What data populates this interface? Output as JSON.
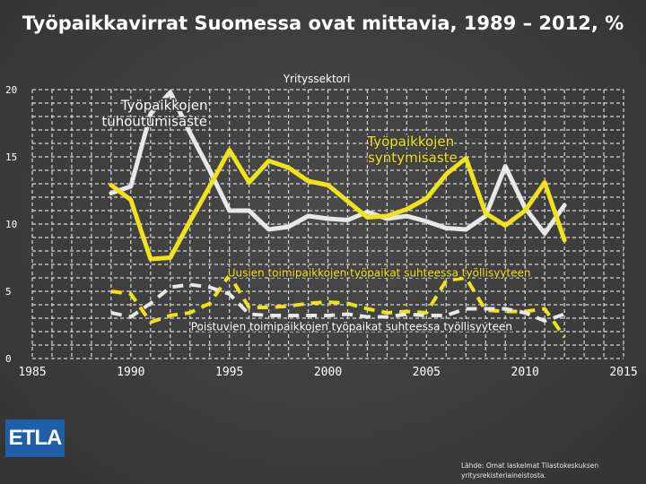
{
  "chart_data": {
    "type": "line",
    "title": "Työpaikkavirrat Suomessa ovat mittavia, 1989 – 2012, %",
    "subtitle": "Yrityssektori",
    "xlim": [
      1985,
      2015
    ],
    "ylim": [
      0,
      20
    ],
    "x_ticks": [
      1985,
      1990,
      1995,
      2000,
      2005,
      2010,
      2015
    ],
    "y_ticks": [
      0,
      5,
      10,
      15,
      20
    ],
    "grid": true,
    "x": [
      1989,
      1990,
      1991,
      1992,
      1993,
      1994,
      1995,
      1996,
      1997,
      1998,
      1999,
      2000,
      2001,
      2002,
      2003,
      2004,
      2005,
      2006,
      2007,
      2008,
      2009,
      2010,
      2011,
      2012
    ],
    "series": [
      {
        "name": "Työpaikkojen tuhoutumisaste",
        "style": "solid",
        "color": "#e8e8e8",
        "values": [
          12.3,
          12.8,
          18.2,
          19.8,
          16.8,
          14.0,
          11.0,
          11.0,
          9.6,
          9.8,
          10.6,
          10.4,
          10.3,
          10.9,
          10.4,
          10.6,
          10.2,
          9.7,
          9.6,
          10.6,
          14.3,
          11.2,
          9.3,
          11.4
        ]
      },
      {
        "name": "Työpaikkojen syntymisaste",
        "style": "solid",
        "color": "#f0e21b",
        "values": [
          12.9,
          11.8,
          7.4,
          7.5,
          10.2,
          12.8,
          15.5,
          13.1,
          14.7,
          14.2,
          13.2,
          12.9,
          11.7,
          10.5,
          10.6,
          11.1,
          11.9,
          13.7,
          14.9,
          10.8,
          9.9,
          11.0,
          13.1,
          8.8
        ]
      },
      {
        "name": "Uusien toimipaikkojen työpaikat suhteessa työllisyyteen",
        "style": "dashed",
        "color": "#f0e21b",
        "values": [
          5.0,
          4.8,
          2.7,
          3.2,
          3.4,
          4.1,
          6.2,
          3.8,
          3.8,
          3.9,
          4.1,
          4.2,
          4.1,
          3.7,
          3.4,
          3.5,
          3.4,
          5.8,
          6.0,
          3.6,
          3.5,
          3.5,
          3.7,
          1.6
        ]
      },
      {
        "name": "Poistuvien toimipaikkojen työpaikat suhteessa työllisyyteen",
        "style": "dashed",
        "color": "#e8e8e8",
        "values": [
          3.4,
          3.1,
          4.1,
          5.3,
          5.5,
          5.3,
          4.8,
          3.3,
          3.2,
          3.2,
          3.2,
          3.2,
          3.3,
          3.1,
          3.1,
          3.3,
          3.2,
          3.2,
          3.7,
          3.7,
          3.7,
          3.4,
          2.8,
          3.3
        ]
      }
    ],
    "annotations": [
      {
        "text": "Työpaikkojen",
        "x": 1991.7,
        "y": 18.5
      },
      {
        "text": "tuhoutumisaste",
        "x": 1991.2,
        "y": 17.3
      },
      {
        "text": "Työpaikkojen",
        "x": 2004.2,
        "y": 15.8
      },
      {
        "text": "syntymisaste",
        "x": 2004.3,
        "y": 14.6
      },
      {
        "text": "Uusien toimipaikkojen työpaikat suhteessa työllisyyteen",
        "x": 2002.6,
        "y": 6.1
      },
      {
        "text": "Poistuvien toimipaikkojen työpaikat suhteessa työllisyyteen",
        "x": 2001.2,
        "y": 2.1
      }
    ]
  },
  "logo": {
    "text": "ETLA"
  },
  "source": {
    "line1": "Lähde: Omat laskelmat Tilastokeskuksen",
    "line2": "yritysrekisteriaineistosta."
  }
}
